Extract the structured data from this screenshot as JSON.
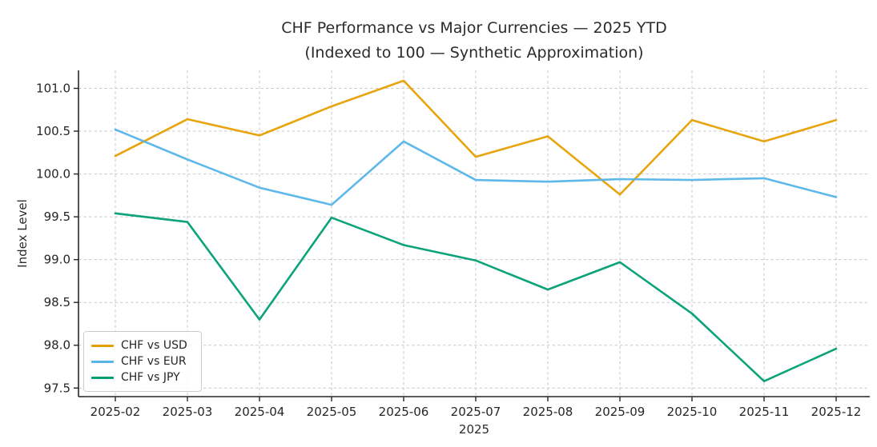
{
  "chart_data": {
    "type": "line",
    "title": "CHF Performance vs Major Currencies — 2025 YTD",
    "subtitle": "(Indexed to 100 — Synthetic Approximation)",
    "xlabel": "2025",
    "ylabel": "Index Level",
    "x": [
      "2025-02",
      "2025-03",
      "2025-04",
      "2025-05",
      "2025-06",
      "2025-07",
      "2025-08",
      "2025-09",
      "2025-10",
      "2025-11",
      "2025-12"
    ],
    "series": [
      {
        "name": "CHF vs USD",
        "color": "#E69F00",
        "values": [
          100.21,
          100.64,
          100.45,
          100.79,
          101.09,
          100.2,
          100.44,
          99.76,
          100.63,
          100.38,
          100.63
        ]
      },
      {
        "name": "CHF vs EUR",
        "color": "#56B4E9",
        "values": [
          100.52,
          100.17,
          99.84,
          99.64,
          100.38,
          99.93,
          99.91,
          99.94,
          99.93,
          99.95,
          99.73
        ]
      },
      {
        "name": "CHF vs JPY",
        "color": "#009E73",
        "values": [
          99.54,
          99.44,
          98.3,
          99.49,
          99.17,
          98.99,
          98.65,
          98.97,
          98.37,
          97.58,
          97.96
        ]
      }
    ],
    "yticks": [
      97.5,
      98.0,
      98.5,
      99.0,
      99.5,
      100.0,
      100.5,
      101.0
    ],
    "ylim": [
      97.4,
      101.21
    ],
    "grid": true,
    "grid_style": "dashed",
    "grid_color": "#c9c9c9",
    "axis_color": "#262626",
    "legend_position": "lower left"
  }
}
